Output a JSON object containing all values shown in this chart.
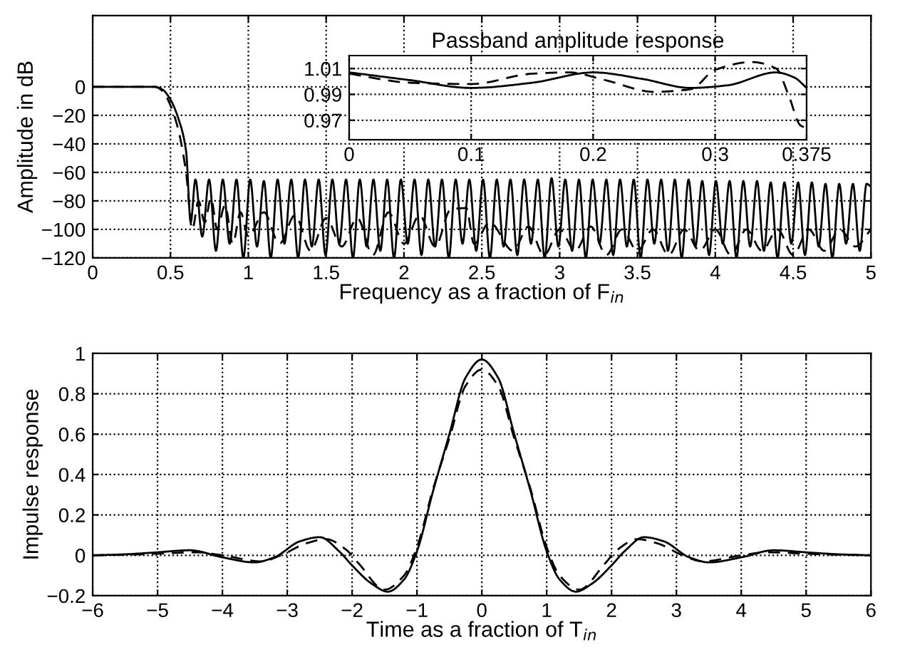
{
  "chart_data": [
    {
      "type": "line",
      "xlabel": "Frequency as a fraction of F$_{in}$",
      "ylabel": "Amplitude in dB",
      "xlim": [
        0,
        5
      ],
      "ylim": [
        -120,
        50
      ],
      "xticks": [
        0,
        0.5,
        1,
        1.5,
        2,
        2.5,
        3,
        3.5,
        4,
        4.5,
        5
      ],
      "yticks": [
        -120,
        -100,
        -80,
        -60,
        -40,
        -20,
        0
      ],
      "grid": true,
      "legend": false,
      "series": [
        {
          "color": "#000000",
          "line_style": "solid",
          "x": [
            0,
            0.2,
            0.4,
            0.45,
            0.5,
            0.55,
            0.6,
            0.63,
            0.66,
            0.704,
            0.748,
            0.792,
            0.836,
            0.88,
            0.924,
            0.968,
            1.012,
            1.056,
            1.1,
            1.144,
            1.188,
            1.232,
            1.276,
            1.32,
            1.364,
            1.408,
            1.452,
            1.496,
            1.54,
            1.584,
            1.628,
            1.672,
            1.716,
            1.76,
            1.804,
            1.848,
            1.892,
            1.936,
            1.98,
            2.024,
            2.068,
            2.112,
            2.156,
            2.2,
            2.244,
            2.288,
            2.332,
            2.376,
            2.42,
            2.464,
            2.508,
            2.552,
            2.596,
            2.64,
            2.684,
            2.728,
            2.772,
            2.816,
            2.86,
            2.904,
            2.948,
            2.992,
            3.036,
            3.08,
            3.124,
            3.168,
            3.212,
            3.256,
            3.3,
            3.344,
            3.388,
            3.432,
            3.476,
            3.52,
            3.564,
            3.608,
            3.652,
            3.696,
            3.74,
            3.784,
            3.828,
            3.872,
            3.916,
            3.96,
            4.004,
            4.048,
            4.092,
            4.136,
            4.18,
            4.224,
            4.268,
            4.312,
            4.356,
            4.4,
            4.444,
            4.488,
            4.532,
            4.576,
            4.62,
            4.664,
            4.708,
            4.752,
            4.796,
            4.84,
            4.884,
            4.928,
            4.972,
            5.0
          ],
          "values": [
            0,
            0,
            0,
            -2,
            -9,
            -22,
            -45,
            -95,
            -65,
            -105,
            -65,
            -115,
            -65,
            -110,
            -65,
            -120,
            -65,
            -112,
            -66,
            -120,
            -65,
            -110,
            -65,
            -120,
            -65,
            -112,
            -65,
            -118,
            -65,
            -110,
            -65,
            -120,
            -65,
            -112,
            -65,
            -115,
            -65,
            -120,
            -65,
            -110,
            -65,
            -118,
            -65,
            -112,
            -65,
            -120,
            -65,
            -110,
            -65,
            -115,
            -65,
            -120,
            -65,
            -112,
            -65,
            -118,
            -65,
            -110,
            -65,
            -120,
            -64,
            -112,
            -65,
            -115,
            -65,
            -120,
            -65,
            -110,
            -65,
            -118,
            -65,
            -112,
            -65,
            -120,
            -65,
            -110,
            -65,
            -115,
            -65,
            -120,
            -65,
            -112,
            -66,
            -118,
            -66,
            -110,
            -66,
            -120,
            -66,
            -112,
            -66,
            -115,
            -67,
            -120,
            -67,
            -110,
            -67,
            -118,
            -67,
            -112,
            -68,
            -120,
            -68,
            -110,
            -68,
            -115,
            -68,
            -70
          ]
        },
        {
          "color": "#000000",
          "line_style": "dashed",
          "x": [
            0,
            0.2,
            0.4,
            0.45,
            0.5,
            0.55,
            0.6,
            0.64,
            0.68,
            0.72,
            0.76,
            0.8,
            0.85,
            0.9,
            0.95,
            1.0,
            1.1,
            1.2,
            1.3,
            1.4,
            1.5,
            1.6,
            1.7,
            1.8,
            1.9,
            2.0,
            2.1,
            2.2,
            2.3,
            2.4,
            2.45,
            2.55,
            2.7,
            2.8,
            2.9,
            3.0,
            3.1,
            3.2,
            3.3,
            3.4,
            3.5,
            3.6,
            3.7,
            3.8,
            3.9,
            4.0,
            4.1,
            4.2,
            4.3,
            4.4,
            4.5,
            4.6,
            4.7,
            4.8,
            4.9,
            5.0
          ],
          "values": [
            0,
            0,
            0,
            -3,
            -13,
            -30,
            -60,
            -100,
            -80,
            -95,
            -78,
            -100,
            -83,
            -110,
            -88,
            -105,
            -88,
            -110,
            -90,
            -115,
            -92,
            -112,
            -92,
            -118,
            -88,
            -110,
            -90,
            -112,
            -86,
            -85,
            -110,
            -95,
            -115,
            -98,
            -118,
            -100,
            -115,
            -98,
            -118,
            -100,
            -115,
            -100,
            -118,
            -100,
            -115,
            -100,
            -118,
            -100,
            -115,
            -100,
            -118,
            -100,
            -115,
            -100,
            -112,
            -100
          ]
        }
      ]
    },
    {
      "type": "line",
      "title": "Passband amplitude response",
      "xlim": [
        0,
        0.375
      ],
      "ylim": [
        0.955,
        1.02
      ],
      "xticks": [
        0,
        0.1,
        0.2,
        0.3,
        0.375
      ],
      "yticks": [
        0.97,
        0.99,
        1.01
      ],
      "grid": true,
      "legend": false,
      "series": [
        {
          "color": "#000000",
          "line_style": "solid",
          "x": [
            0,
            0.05,
            0.1,
            0.15,
            0.2,
            0.24,
            0.28,
            0.31,
            0.35,
            0.365,
            0.375
          ],
          "values": [
            1.007,
            1.001,
            0.995,
            0.999,
            1.007,
            1.002,
            0.995,
            0.997,
            1.007,
            1.003,
            0.995
          ]
        },
        {
          "color": "#000000",
          "line_style": "dashed",
          "x": [
            0,
            0.05,
            0.1,
            0.15,
            0.18,
            0.21,
            0.25,
            0.28,
            0.3,
            0.33,
            0.35,
            0.36,
            0.37,
            0.375
          ],
          "values": [
            1.006,
            0.999,
            0.998,
            1.006,
            1.007,
            1.001,
            0.992,
            0.994,
            1.009,
            1.015,
            1.01,
            0.99,
            0.966,
            0.964
          ]
        }
      ]
    },
    {
      "type": "line",
      "xlabel": "Time as a fraction of T$_{in}$",
      "ylabel": "Impulse response",
      "xlim": [
        -6,
        6
      ],
      "ylim": [
        -0.2,
        1
      ],
      "xticks": [
        -6,
        -5,
        -4,
        -3,
        -2,
        -1,
        0,
        1,
        2,
        3,
        4,
        5,
        6
      ],
      "yticks": [
        -0.2,
        0,
        0.2,
        0.4,
        0.6,
        0.8,
        1
      ],
      "grid": true,
      "legend": false,
      "series": [
        {
          "color": "#000000",
          "line_style": "solid",
          "x": [
            -6,
            -5.5,
            -5,
            -4.5,
            -4,
            -3.5,
            -3.2,
            -2.8,
            -2.5,
            -2.2,
            -2,
            -1.7,
            -1.45,
            -1.2,
            -1,
            -0.75,
            -0.5,
            -0.25,
            0,
            0.25,
            0.5,
            0.75,
            1,
            1.2,
            1.45,
            1.7,
            2,
            2.2,
            2.5,
            2.8,
            3.2,
            3.5,
            4,
            4.5,
            5,
            5.5,
            6
          ],
          "values": [
            0,
            0.005,
            0.015,
            0.025,
            -0.01,
            -0.035,
            -0.01,
            0.07,
            0.09,
            0.02,
            -0.05,
            -0.14,
            -0.18,
            -0.12,
            0.02,
            0.32,
            0.6,
            0.88,
            0.97,
            0.88,
            0.6,
            0.32,
            0.02,
            -0.12,
            -0.18,
            -0.14,
            -0.05,
            0.02,
            0.09,
            0.07,
            -0.01,
            -0.035,
            -0.01,
            0.025,
            0.015,
            0.005,
            0
          ]
        },
        {
          "color": "#000000",
          "line_style": "dashed",
          "x": [
            -6,
            -5.5,
            -5,
            -4.4,
            -4,
            -3.4,
            -3.1,
            -2.7,
            -2.4,
            -2.1,
            -1.9,
            -1.5,
            -1.2,
            -1,
            -0.75,
            -0.5,
            -0.25,
            0,
            0.25,
            0.5,
            0.75,
            1,
            1.2,
            1.5,
            1.9,
            2.1,
            2.4,
            2.7,
            3.1,
            3.4,
            4,
            4.4,
            5,
            5.5,
            6
          ],
          "values": [
            0,
            0.003,
            0.008,
            0.015,
            0,
            -0.03,
            0,
            0.06,
            0.08,
            0.03,
            -0.04,
            -0.17,
            -0.1,
            0.04,
            0.33,
            0.58,
            0.84,
            0.92,
            0.84,
            0.58,
            0.33,
            0.04,
            -0.1,
            -0.17,
            -0.04,
            0.03,
            0.08,
            0.06,
            0,
            -0.03,
            0,
            0.015,
            0.008,
            0.003,
            0
          ]
        }
      ]
    }
  ]
}
